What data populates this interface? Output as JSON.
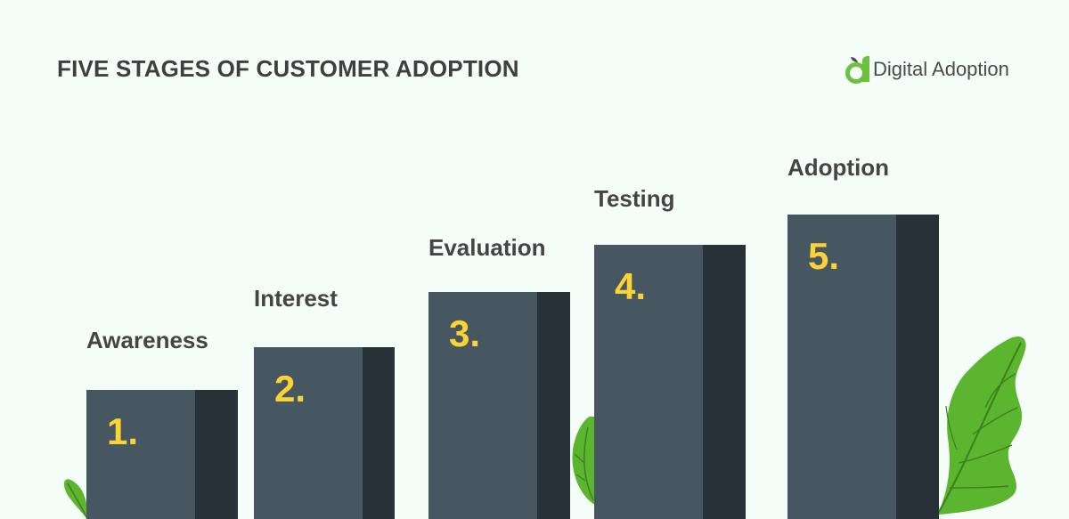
{
  "header": {
    "title": "FIVE STAGES OF CUSTOMER ADOPTION"
  },
  "brand": {
    "name": "Digital Adoption",
    "mark_icon": "digital-adoption-logo-icon",
    "mark_color": "#6ec03f"
  },
  "stages": [
    {
      "number": "1.",
      "label": "Awareness",
      "level": 1
    },
    {
      "number": "2.",
      "label": "Interest",
      "level": 2
    },
    {
      "number": "3.",
      "label": "Evaluation",
      "level": 3
    },
    {
      "number": "4.",
      "label": "Testing",
      "level": 4
    },
    {
      "number": "5.",
      "label": "Adoption",
      "level": 5
    }
  ],
  "colors": {
    "background": "#f4fdf8",
    "bar_face": "#465762",
    "bar_side": "#283137",
    "number": "#fcd335",
    "label": "#454545",
    "leaf": "#5bb52e",
    "leaf_vein": "#3f7f20"
  },
  "decorations": [
    "leaf-icon",
    "leaf-icon",
    "leaf-icon"
  ]
}
